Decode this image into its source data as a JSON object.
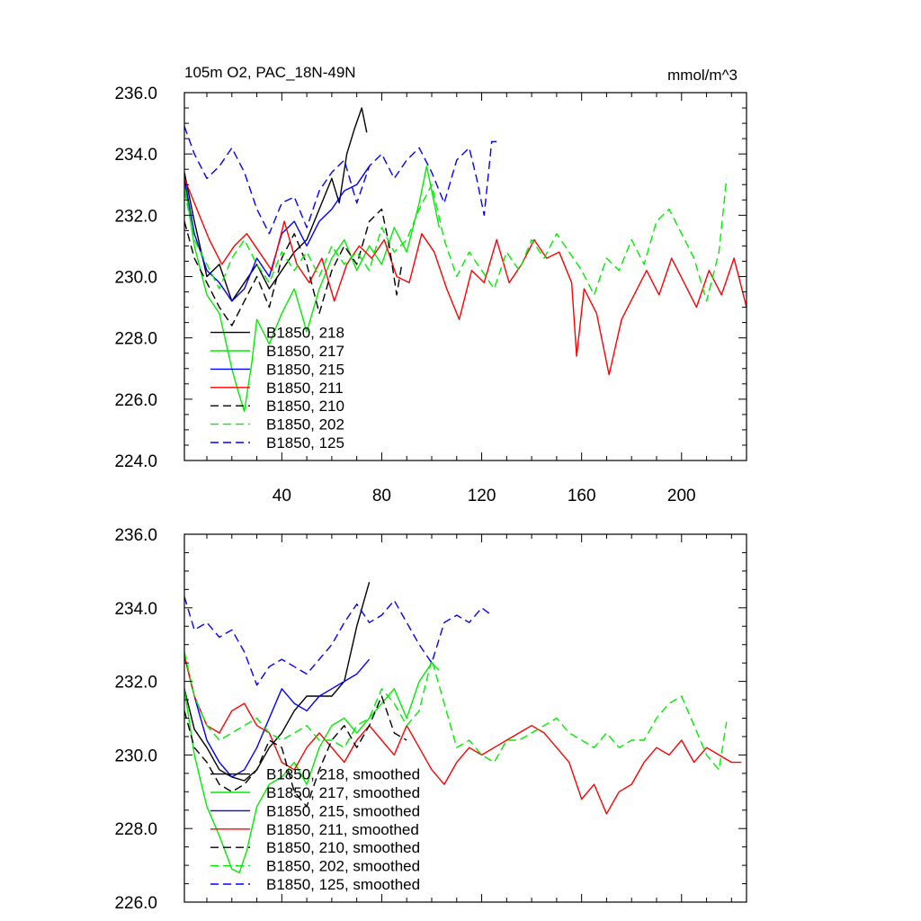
{
  "chart_data": [
    {
      "type": "line",
      "title": "105m O2, PAC_18N-49N",
      "units": "mmol/m^3",
      "xlim": [
        1,
        226
      ],
      "ylim": [
        224,
        236
      ],
      "xticks": [
        40,
        80,
        120,
        160,
        200
      ],
      "yticks": [
        "224.0",
        "226.0",
        "228.0",
        "230.0",
        "232.0",
        "234.0",
        "236.0"
      ],
      "legend_position": "lower-left",
      "series": [
        {
          "name": "B1850, 218",
          "color": "#000000",
          "dash": "solid",
          "x": [
            1,
            5,
            10,
            15,
            20,
            25,
            30,
            35,
            40,
            45,
            50,
            55,
            60,
            63,
            66,
            69,
            72,
            74
          ],
          "y": [
            233.4,
            231.8,
            230.0,
            230.4,
            229.2,
            229.8,
            230.4,
            229.6,
            230.2,
            230.8,
            231.2,
            232.2,
            233.2,
            232.4,
            234.0,
            234.8,
            235.5,
            234.7
          ]
        },
        {
          "name": "B1850, 217",
          "color": "#00ee00",
          "dash": "solid",
          "x": [
            1,
            5,
            10,
            15,
            20,
            22,
            25,
            28,
            30,
            35,
            40,
            45,
            50,
            55,
            60,
            65,
            70,
            75,
            80,
            85,
            90,
            95,
            98,
            100,
            103
          ],
          "y": [
            233.1,
            231.0,
            229.4,
            228.8,
            227.0,
            226.4,
            225.6,
            227.2,
            228.6,
            227.8,
            228.8,
            229.6,
            228.2,
            229.6,
            230.6,
            231.2,
            230.2,
            231.0,
            230.4,
            231.6,
            230.8,
            232.4,
            233.6,
            232.8,
            231.6
          ]
        },
        {
          "name": "B1850, 215",
          "color": "#0000ff",
          "dash": "solid",
          "x": [
            1,
            5,
            10,
            15,
            20,
            25,
            30,
            35,
            40,
            45,
            50,
            55,
            60,
            65,
            70,
            75
          ],
          "y": [
            233.2,
            231.4,
            230.2,
            229.8,
            229.2,
            229.6,
            230.6,
            230.0,
            231.4,
            231.8,
            231.0,
            231.8,
            232.2,
            232.8,
            233.0,
            233.6
          ]
        },
        {
          "name": "B1850, 211",
          "color": "#ff0000",
          "dash": "solid",
          "x": [
            1,
            6,
            11,
            16,
            21,
            26,
            31,
            36,
            41,
            46,
            51,
            56,
            61,
            66,
            71,
            76,
            81,
            86,
            91,
            96,
            101,
            106,
            111,
            116,
            121,
            126,
            131,
            136,
            141,
            146,
            151,
            156,
            158,
            161,
            166,
            171,
            176,
            181,
            186,
            191,
            196,
            201,
            206,
            211,
            216,
            221,
            226
          ],
          "y": [
            233.2,
            232.2,
            231.2,
            230.4,
            231.0,
            231.4,
            230.8,
            230.2,
            231.8,
            230.4,
            229.8,
            230.6,
            229.2,
            230.4,
            231.0,
            230.6,
            231.2,
            230.0,
            229.8,
            231.4,
            230.8,
            229.6,
            228.6,
            230.2,
            229.8,
            231.2,
            229.8,
            230.4,
            231.2,
            230.6,
            230.8,
            229.8,
            227.4,
            229.6,
            228.8,
            226.8,
            228.6,
            229.4,
            230.2,
            229.4,
            230.6,
            229.8,
            229.0,
            230.2,
            229.4,
            230.6,
            229.0
          ]
        },
        {
          "name": "B1850, 210",
          "color": "#000000",
          "dash": "dashed",
          "x": [
            1,
            5,
            10,
            15,
            20,
            25,
            30,
            35,
            40,
            45,
            50,
            55,
            60,
            65,
            70,
            75,
            80,
            83,
            86,
            88
          ],
          "y": [
            231.8,
            230.6,
            229.8,
            229.0,
            228.4,
            229.2,
            230.0,
            229.0,
            230.6,
            231.4,
            230.4,
            228.8,
            230.2,
            231.0,
            230.4,
            231.8,
            232.2,
            231.0,
            229.4,
            230.4
          ]
        },
        {
          "name": "B1850, 202",
          "color": "#00ee00",
          "dash": "dashed",
          "x": [
            1,
            5,
            10,
            15,
            20,
            25,
            30,
            35,
            40,
            45,
            50,
            55,
            60,
            65,
            70,
            75,
            80,
            85,
            90,
            95,
            100,
            105,
            110,
            115,
            120,
            125,
            130,
            135,
            140,
            145,
            150,
            155,
            160,
            165,
            170,
            175,
            180,
            185,
            190,
            195,
            200,
            205,
            210,
            215,
            218
          ],
          "y": [
            232.8,
            231.2,
            230.4,
            229.6,
            230.6,
            231.2,
            230.4,
            229.8,
            230.8,
            230.2,
            230.8,
            230.0,
            231.0,
            230.4,
            230.8,
            230.2,
            231.6,
            230.8,
            231.2,
            232.2,
            233.0,
            231.2,
            230.0,
            230.8,
            230.2,
            229.6,
            230.8,
            230.2,
            231.2,
            230.6,
            231.4,
            230.8,
            230.2,
            229.4,
            230.6,
            230.2,
            231.2,
            230.4,
            231.8,
            232.2,
            231.4,
            230.6,
            229.2,
            230.8,
            233.2
          ]
        },
        {
          "name": "B1850, 125",
          "color": "#0000ff",
          "dash": "dashed",
          "x": [
            1,
            5,
            10,
            15,
            20,
            25,
            30,
            35,
            40,
            45,
            50,
            55,
            60,
            65,
            70,
            75,
            80,
            85,
            90,
            95,
            100,
            105,
            110,
            115,
            118,
            121,
            124,
            126
          ],
          "y": [
            234.9,
            234.0,
            233.2,
            233.6,
            234.2,
            233.4,
            232.2,
            231.4,
            232.4,
            232.6,
            231.6,
            232.8,
            233.4,
            233.8,
            232.4,
            233.6,
            234.0,
            233.2,
            233.8,
            234.2,
            233.4,
            232.4,
            233.8,
            234.2,
            233.2,
            232.0,
            234.4,
            234.4
          ]
        }
      ]
    },
    {
      "type": "line",
      "xlim": [
        1,
        226
      ],
      "ylim": [
        226,
        236
      ],
      "yticks": [
        "226.0",
        "228.0",
        "230.0",
        "232.0",
        "234.0",
        "236.0"
      ],
      "legend_position": "lower-left",
      "series": [
        {
          "name": "B1850, 218, smoothed",
          "color": "#000000",
          "dash": "solid",
          "x": [
            1,
            5,
            10,
            15,
            20,
            25,
            30,
            35,
            40,
            45,
            50,
            55,
            60,
            65,
            70,
            75
          ],
          "y": [
            231.8,
            230.7,
            230.2,
            229.6,
            229.4,
            229.3,
            229.6,
            230.2,
            230.6,
            231.2,
            231.6,
            231.6,
            231.6,
            232.0,
            233.5,
            234.7
          ]
        },
        {
          "name": "B1850, 217, smoothed",
          "color": "#00ee00",
          "dash": "solid",
          "x": [
            1,
            5,
            10,
            15,
            20,
            23,
            26,
            30,
            35,
            40,
            45,
            50,
            55,
            60,
            65,
            70,
            75,
            80,
            85,
            90,
            95,
            100,
            103
          ],
          "y": [
            231.8,
            230.0,
            228.6,
            227.8,
            226.9,
            226.8,
            227.4,
            228.6,
            229.2,
            229.4,
            229.8,
            229.2,
            230.2,
            230.8,
            231.0,
            230.6,
            231.0,
            231.4,
            231.8,
            231.0,
            232.0,
            232.5,
            232.3
          ]
        },
        {
          "name": "B1850, 215, smoothed",
          "color": "#0000ff",
          "dash": "solid",
          "x": [
            1,
            5,
            10,
            15,
            20,
            25,
            30,
            35,
            40,
            45,
            50,
            55,
            60,
            65,
            70,
            75
          ],
          "y": [
            232.7,
            231.6,
            230.4,
            229.8,
            229.4,
            229.6,
            230.2,
            231.0,
            231.8,
            231.4,
            231.2,
            231.6,
            231.8,
            232.0,
            232.2,
            232.6
          ]
        },
        {
          "name": "B1850, 211, smoothed",
          "color": "#ff0000",
          "dash": "solid",
          "x": [
            1,
            5,
            10,
            15,
            20,
            25,
            30,
            35,
            40,
            45,
            50,
            55,
            60,
            65,
            70,
            75,
            80,
            85,
            90,
            95,
            100,
            105,
            110,
            115,
            120,
            125,
            130,
            135,
            140,
            145,
            150,
            155,
            160,
            165,
            170,
            175,
            180,
            185,
            190,
            195,
            200,
            205,
            210,
            215,
            220,
            224
          ],
          "y": [
            232.7,
            231.6,
            230.8,
            230.6,
            231.2,
            231.4,
            230.8,
            230.6,
            229.8,
            229.6,
            230.2,
            230.6,
            230.2,
            229.8,
            230.4,
            230.8,
            230.4,
            230.0,
            230.8,
            230.2,
            229.6,
            229.2,
            229.8,
            230.2,
            230.0,
            230.2,
            230.4,
            230.6,
            230.8,
            230.6,
            230.2,
            229.8,
            228.8,
            229.2,
            228.4,
            229.0,
            229.2,
            229.8,
            230.2,
            230.0,
            230.4,
            229.8,
            230.2,
            230.0,
            229.8,
            229.8
          ]
        },
        {
          "name": "B1850, 210, smoothed",
          "color": "#000000",
          "dash": "dashed",
          "x": [
            1,
            5,
            10,
            15,
            20,
            25,
            30,
            35,
            40,
            45,
            50,
            55,
            60,
            65,
            70,
            75,
            80,
            85,
            90
          ],
          "y": [
            231.2,
            230.2,
            229.8,
            229.2,
            229.0,
            229.2,
            229.6,
            230.4,
            230.2,
            229.0,
            228.6,
            229.6,
            230.4,
            230.8,
            230.2,
            230.8,
            231.6,
            230.6,
            230.4
          ]
        },
        {
          "name": "B1850, 202, smoothed",
          "color": "#00ee00",
          "dash": "dashed",
          "x": [
            1,
            5,
            10,
            15,
            20,
            25,
            30,
            35,
            40,
            45,
            50,
            55,
            60,
            65,
            70,
            75,
            80,
            85,
            90,
            95,
            100,
            105,
            110,
            115,
            120,
            125,
            130,
            135,
            140,
            145,
            150,
            155,
            160,
            165,
            170,
            175,
            180,
            185,
            190,
            195,
            200,
            205,
            210,
            215,
            218
          ],
          "y": [
            232.8,
            231.6,
            230.8,
            230.4,
            230.6,
            230.8,
            231.0,
            230.6,
            230.4,
            230.6,
            230.8,
            230.4,
            230.4,
            230.2,
            230.8,
            231.0,
            231.8,
            231.4,
            230.8,
            231.2,
            232.6,
            231.4,
            230.2,
            230.4,
            230.0,
            229.8,
            230.4,
            230.4,
            230.6,
            230.8,
            231.0,
            230.6,
            230.4,
            230.2,
            230.6,
            230.2,
            230.4,
            230.4,
            231.0,
            231.4,
            231.6,
            230.8,
            230.0,
            229.6,
            230.9
          ]
        },
        {
          "name": "B1850, 125, smoothed",
          "color": "#0000ff",
          "dash": "dashed",
          "x": [
            1,
            5,
            10,
            15,
            20,
            25,
            30,
            35,
            40,
            45,
            50,
            55,
            60,
            65,
            70,
            75,
            80,
            85,
            90,
            95,
            100,
            105,
            110,
            115,
            120,
            124
          ],
          "y": [
            234.3,
            233.4,
            233.6,
            233.2,
            233.4,
            232.8,
            231.9,
            232.4,
            232.6,
            232.4,
            232.2,
            232.6,
            233.0,
            233.6,
            234.1,
            233.6,
            233.8,
            234.2,
            233.6,
            233.0,
            232.5,
            233.6,
            233.8,
            233.6,
            234.0,
            233.8
          ]
        }
      ]
    }
  ]
}
